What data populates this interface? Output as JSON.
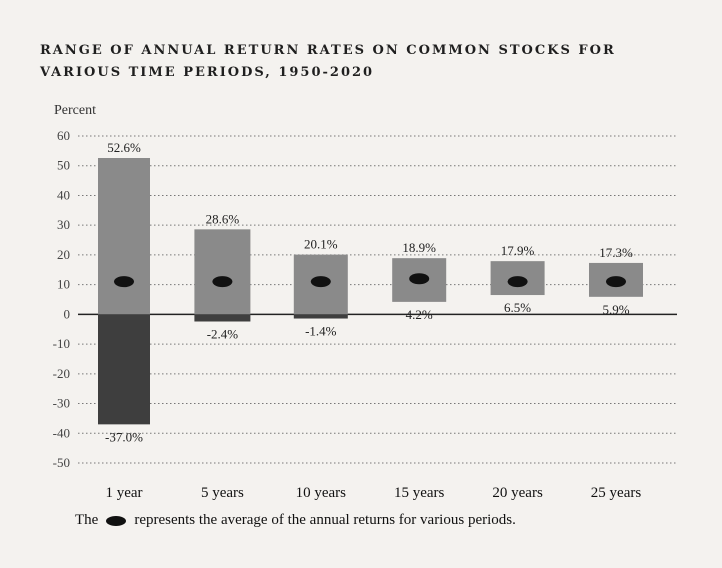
{
  "title": "RANGE OF ANNUAL RETURN RATES ON COMMON STOCKS FOR\nVARIOUS TIME PERIODS, 1950-2020",
  "note": {
    "before": "The",
    "after": "represents the average of the annual returns for various periods."
  },
  "colors": {
    "box": "#8a8a8a",
    "box_negative": "#3e3e3e",
    "average_marker": "#111111",
    "grid": "#777777"
  },
  "chart_data": {
    "type": "bar",
    "subtype": "floating-range",
    "ylabel": "Percent",
    "ylim": [
      -50,
      60
    ],
    "yticks": [
      60,
      50,
      40,
      30,
      20,
      10,
      0,
      -10,
      -20,
      -30,
      -40,
      -50
    ],
    "grid": "dotted horizontal",
    "categories": [
      "1 year",
      "5 years",
      "10 years",
      "15 years",
      "20 years",
      "25 years"
    ],
    "high": [
      52.6,
      28.6,
      20.1,
      18.9,
      17.9,
      17.3
    ],
    "low": [
      -37.0,
      -2.4,
      -1.4,
      4.2,
      6.5,
      5.9
    ],
    "high_labels": [
      "52.6%",
      "28.6%",
      "20.1%",
      "18.9%",
      "17.9%",
      "17.3%"
    ],
    "low_labels": [
      "-37.0%",
      "-2.4%",
      "-1.4%",
      "4.2%",
      "6.5%",
      "5.9%"
    ],
    "average": [
      11,
      11,
      11,
      12,
      11,
      11
    ]
  }
}
